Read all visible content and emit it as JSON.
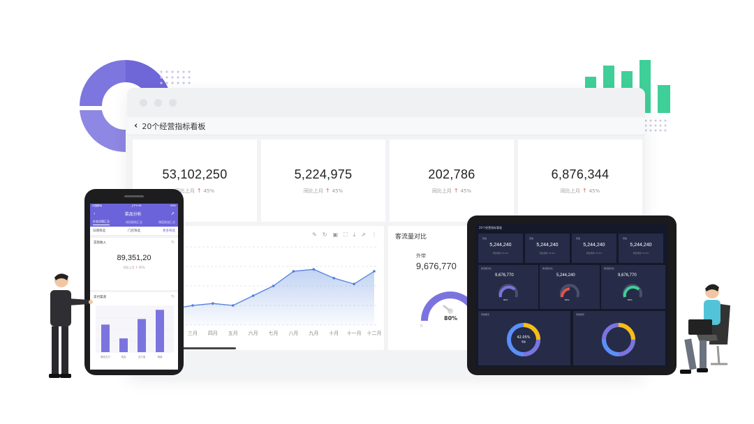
{
  "window": {
    "nav_title": "20个经营指标看板",
    "kpis": [
      {
        "value": "53,102,250",
        "compare_label": "同比上月",
        "change": "45%"
      },
      {
        "value": "5,224,975",
        "compare_label": "同比上月",
        "change": "45%"
      },
      {
        "value": "202,786",
        "compare_label": "同比上月",
        "change": "45%"
      },
      {
        "value": "6,876,344",
        "compare_label": "同比上月",
        "change": "45%"
      }
    ],
    "flow_card": {
      "title": "客流量对比",
      "label": "外带",
      "value": "9,676,770",
      "gauge_percent": "80%",
      "gauge_level": 0.8
    }
  },
  "chart_data": {
    "type": "area",
    "categories": [
      "三月",
      "四月",
      "五月",
      "六月",
      "七月",
      "八月",
      "九月",
      "十月",
      "十一月",
      "十二月"
    ],
    "series": [
      {
        "values": [
          20,
          22,
          20,
          30,
          40,
          55,
          57,
          48,
          42,
          55
        ]
      }
    ],
    "ylim": [
      0,
      80
    ],
    "grid": true
  },
  "phone": {
    "status_carrier": "中国移动",
    "status_time": "上午9:36",
    "status_battery": "65%",
    "header_title": "菜品分析",
    "tabs": [
      "外卖详情汇总",
      "排班绩效汇总",
      "储值渠道汇总"
    ],
    "filters": {
      "date": "日期筛选",
      "store": "门店筛选",
      "more": "更多筛选"
    },
    "revenue_card": {
      "title": "实际收入",
      "value": "89,351,20",
      "compare_label": "同比上月",
      "change": "45%"
    },
    "channel_card": {
      "title": "支付渠道",
      "categories": [
        "微信支付",
        "现金",
        "支付宝",
        "储值"
      ],
      "values": [
        30,
        15,
        36,
        46
      ]
    }
  },
  "tablet": {
    "title": "20个经营指标看板",
    "kpis": [
      {
        "label": "营收",
        "value": "5,244,240",
        "sub": "同比增长 15.4%"
      },
      {
        "label": "营收",
        "value": "5,244,240",
        "sub": "同比增长 15.4%"
      },
      {
        "label": "营收",
        "value": "5,244,240",
        "sub": "同比增长 15.4%"
      },
      {
        "label": "营收",
        "value": "5,244,240",
        "sub": "同比增长 15.4%"
      }
    ],
    "gauges": [
      {
        "label": "客流量对比",
        "value": "9,676,770",
        "percent": "80%"
      },
      {
        "label": "客流量对比",
        "value": "5,244,240",
        "percent": "80%"
      },
      {
        "label": "客流量对比",
        "value": "9,676,770",
        "percent": "80%"
      }
    ],
    "rings": [
      {
        "label": "营收概览",
        "center": "42.05%",
        "center_sub": "现金"
      },
      {
        "label": "营收概览",
        "center": "",
        "center_sub": ""
      }
    ]
  },
  "colors": {
    "accent_purple": "#6b63d9",
    "accent_green": "#3fcf99",
    "up_red": "#e5534b",
    "line_blue": "#4e7fdc"
  }
}
